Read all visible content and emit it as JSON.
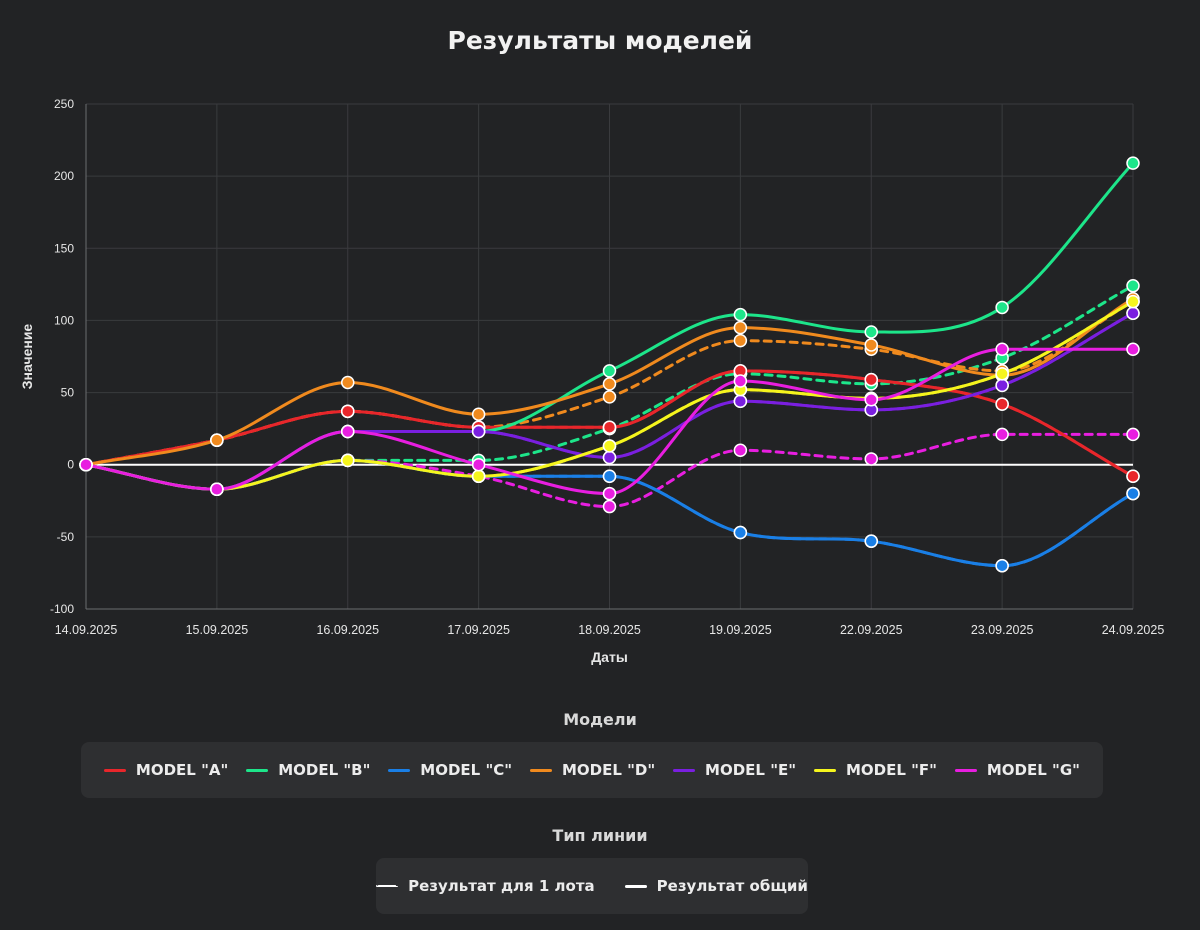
{
  "title": "Результаты моделей",
  "chart_data": {
    "type": "line",
    "xlabel": "Даты",
    "ylabel": "Значение",
    "ylim": [
      -100,
      250
    ],
    "yticks": [
      -100,
      -50,
      0,
      50,
      100,
      150,
      200,
      250
    ],
    "grid": true,
    "categories": [
      "14.09.2025",
      "15.09.2025",
      "16.09.2025",
      "17.09.2025",
      "18.09.2025",
      "19.09.2025",
      "22.09.2025",
      "23.09.2025",
      "24.09.2025"
    ],
    "series": [
      {
        "name": "MODEL \"A\"",
        "color": "#e8262b",
        "style": "solid",
        "values": [
          0,
          17,
          37,
          26,
          26,
          65,
          59,
          42,
          -8
        ]
      },
      {
        "name": "MODEL \"A\"",
        "color": "#e8262b",
        "style": "dashed",
        "values": [
          0,
          17,
          37,
          26,
          26,
          65,
          59,
          42,
          -8
        ]
      },
      {
        "name": "MODEL \"B\"",
        "color": "#1de58a",
        "style": "solid",
        "values": [
          0,
          -17,
          23,
          23,
          65,
          104,
          92,
          109,
          209
        ]
      },
      {
        "name": "MODEL \"B\"",
        "color": "#1de58a",
        "style": "dashed",
        "values": [
          0,
          -17,
          3,
          3,
          25,
          63,
          56,
          74,
          124
        ]
      },
      {
        "name": "MODEL \"C\"",
        "color": "#1a7fe6",
        "style": "solid",
        "values": [
          0,
          -17,
          3,
          -8,
          -8,
          -47,
          -53,
          -70,
          -20
        ]
      },
      {
        "name": "MODEL \"C\"",
        "color": "#1a7fe6",
        "style": "dashed",
        "values": [
          0,
          -17,
          3,
          -8,
          -8,
          -47,
          -53,
          -70,
          -20
        ]
      },
      {
        "name": "MODEL \"D\"",
        "color": "#f08a1e",
        "style": "solid",
        "values": [
          0,
          17,
          57,
          35,
          56,
          95,
          83,
          62,
          115
        ]
      },
      {
        "name": "MODEL \"D\"",
        "color": "#f08a1e",
        "style": "dashed",
        "values": [
          0,
          17,
          37,
          26,
          47,
          86,
          80,
          65,
          113
        ]
      },
      {
        "name": "MODEL \"E\"",
        "color": "#7a1fe0",
        "style": "solid",
        "values": [
          0,
          -17,
          23,
          23,
          5,
          44,
          38,
          55,
          105
        ]
      },
      {
        "name": "MODEL \"E\"",
        "color": "#7a1fe0",
        "style": "dashed",
        "values": [
          0,
          -17,
          23,
          23,
          5,
          44,
          38,
          55,
          105
        ]
      },
      {
        "name": "MODEL \"F\"",
        "color": "#f5f51d",
        "style": "solid",
        "values": [
          0,
          -17,
          3,
          -8,
          13,
          52,
          46,
          63,
          113
        ]
      },
      {
        "name": "MODEL \"F\"",
        "color": "#f5f51d",
        "style": "dashed",
        "values": [
          0,
          -17,
          3,
          -8,
          13,
          52,
          46,
          63,
          113
        ]
      },
      {
        "name": "MODEL \"G\"",
        "color": "#e81ee0",
        "style": "solid",
        "values": [
          0,
          -17,
          23,
          0,
          -20,
          58,
          45,
          80,
          80
        ]
      },
      {
        "name": "MODEL \"G\"",
        "color": "#e81ee0",
        "style": "dashed",
        "values": [
          0,
          -17,
          3,
          -8,
          -29,
          10,
          4,
          21,
          21
        ]
      }
    ],
    "reference_line": {
      "value": 0,
      "color": "#ffffff"
    }
  },
  "legend_models": {
    "title": "Модели",
    "items": [
      {
        "label": "MODEL \"A\"",
        "color": "#e8262b"
      },
      {
        "label": "MODEL \"B\"",
        "color": "#1de58a"
      },
      {
        "label": "MODEL \"C\"",
        "color": "#1a7fe6"
      },
      {
        "label": "MODEL \"D\"",
        "color": "#f08a1e"
      },
      {
        "label": "MODEL \"E\"",
        "color": "#7a1fe0"
      },
      {
        "label": "MODEL \"F\"",
        "color": "#f5f51d"
      },
      {
        "label": "MODEL \"G\"",
        "color": "#e81ee0"
      }
    ]
  },
  "legend_lines": {
    "title": "Тип линии",
    "items": [
      {
        "label": "Результат для 1 лота",
        "style": "dashed",
        "color": "#ffffff"
      },
      {
        "label": "Результат общий",
        "style": "solid",
        "color": "#ffffff"
      }
    ]
  }
}
